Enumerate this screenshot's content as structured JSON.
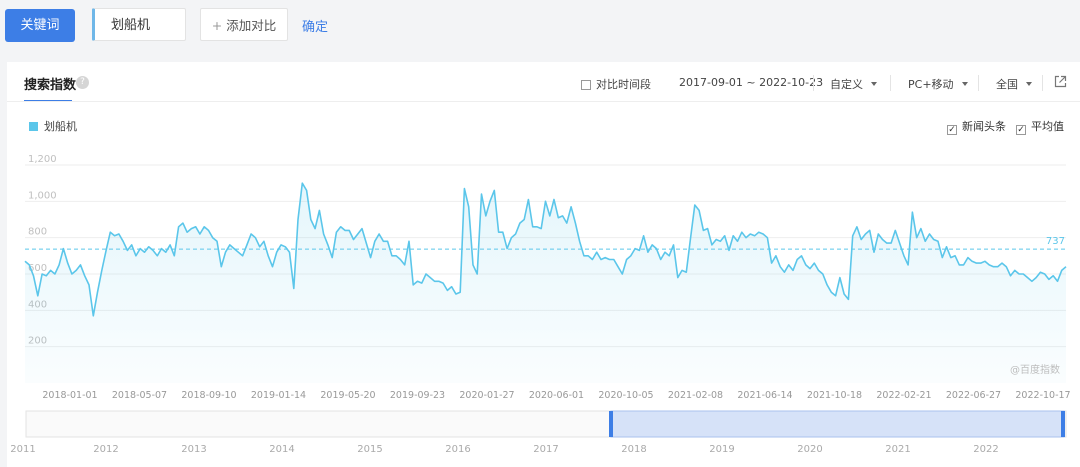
{
  "toolbar": {
    "keyword_button": "关键词",
    "keyword_value": "划船机",
    "add_compare": "添加对比",
    "confirm": "确定"
  },
  "panel": {
    "tab_title": "搜索指数",
    "help_icon": "question-icon",
    "compare_time_label": "对比时间段",
    "date_range": "2017-09-01 ~ 2022-10-23",
    "custom_label": "自定义",
    "device_label": "PC+移动",
    "region_label": "全国",
    "export_icon": "external-link-icon"
  },
  "legend": {
    "series_name": "划船机",
    "color": "#5bc6ea"
  },
  "options": {
    "news_headlines": "新闻头条",
    "news_checked": true,
    "average": "平均值",
    "average_checked": true
  },
  "watermark": "@百度指数",
  "chart_data": {
    "type": "area",
    "ylim": [
      0,
      1200
    ],
    "yticks": [
      "1,200",
      "1,000",
      "800",
      "600",
      "400",
      "200"
    ],
    "xtick_labels": [
      "2018-01-01",
      "2018-05-07",
      "2018-09-10",
      "2019-01-14",
      "2019-05-20",
      "2019-09-23",
      "2020-01-27",
      "2020-06-01",
      "2020-10-05",
      "2021-02-08",
      "2021-06-14",
      "2021-10-18",
      "2022-02-21",
      "2022-06-27",
      "2022-10-17"
    ],
    "average": 737,
    "average_label": "737",
    "series": [
      {
        "name": "划船机",
        "values": [
          670,
          650,
          590,
          480,
          600,
          590,
          620,
          600,
          650,
          740,
          660,
          600,
          620,
          650,
          590,
          540,
          370,
          500,
          620,
          730,
          830,
          810,
          820,
          780,
          730,
          760,
          700,
          740,
          720,
          750,
          730,
          700,
          740,
          720,
          760,
          700,
          860,
          880,
          830,
          850,
          860,
          820,
          860,
          840,
          800,
          780,
          640,
          720,
          760,
          740,
          720,
          700,
          760,
          820,
          800,
          750,
          780,
          700,
          640,
          720,
          760,
          750,
          720,
          520,
          900,
          1100,
          1060,
          900,
          850,
          950,
          820,
          760,
          690,
          830,
          860,
          840,
          840,
          790,
          820,
          850,
          770,
          690,
          780,
          820,
          780,
          780,
          700,
          700,
          680,
          650,
          780,
          540,
          560,
          550,
          600,
          580,
          560,
          560,
          550,
          510,
          530,
          490,
          500,
          1070,
          970,
          650,
          600,
          1040,
          920,
          1000,
          1060,
          830,
          830,
          740,
          800,
          820,
          880,
          900,
          1010,
          860,
          860,
          850,
          1000,
          920,
          1010,
          910,
          920,
          880,
          970,
          880,
          780,
          700,
          700,
          680,
          720,
          680,
          690,
          680,
          680,
          640,
          600,
          680,
          700,
          740,
          730,
          810,
          720,
          760,
          740,
          680,
          720,
          700,
          760,
          580,
          620,
          610,
          800,
          980,
          950,
          840,
          850,
          760,
          790,
          780,
          810,
          730,
          810,
          780,
          830,
          800,
          820,
          810,
          830,
          820,
          800,
          660,
          700,
          640,
          610,
          650,
          620,
          680,
          700,
          650,
          630,
          660,
          620,
          600,
          540,
          500,
          480,
          580,
          490,
          460,
          810,
          860,
          790,
          820,
          840,
          720,
          820,
          790,
          770,
          770,
          840,
          770,
          700,
          650,
          940,
          800,
          850,
          780,
          820,
          790,
          780,
          690,
          750,
          690,
          700,
          650,
          650,
          690,
          670,
          660,
          660,
          670,
          650,
          640,
          640,
          660,
          640,
          590,
          620,
          600,
          600,
          580,
          560,
          580,
          610,
          600,
          570,
          590,
          560,
          620,
          640
        ]
      }
    ],
    "navigator": {
      "year_labels": [
        "2011",
        "2012",
        "2013",
        "2014",
        "2015",
        "2016",
        "2017",
        "2018",
        "2019",
        "2020",
        "2021",
        "2022"
      ],
      "selection_start": "2017-09-01",
      "selection_end": "2022-10-23"
    }
  }
}
